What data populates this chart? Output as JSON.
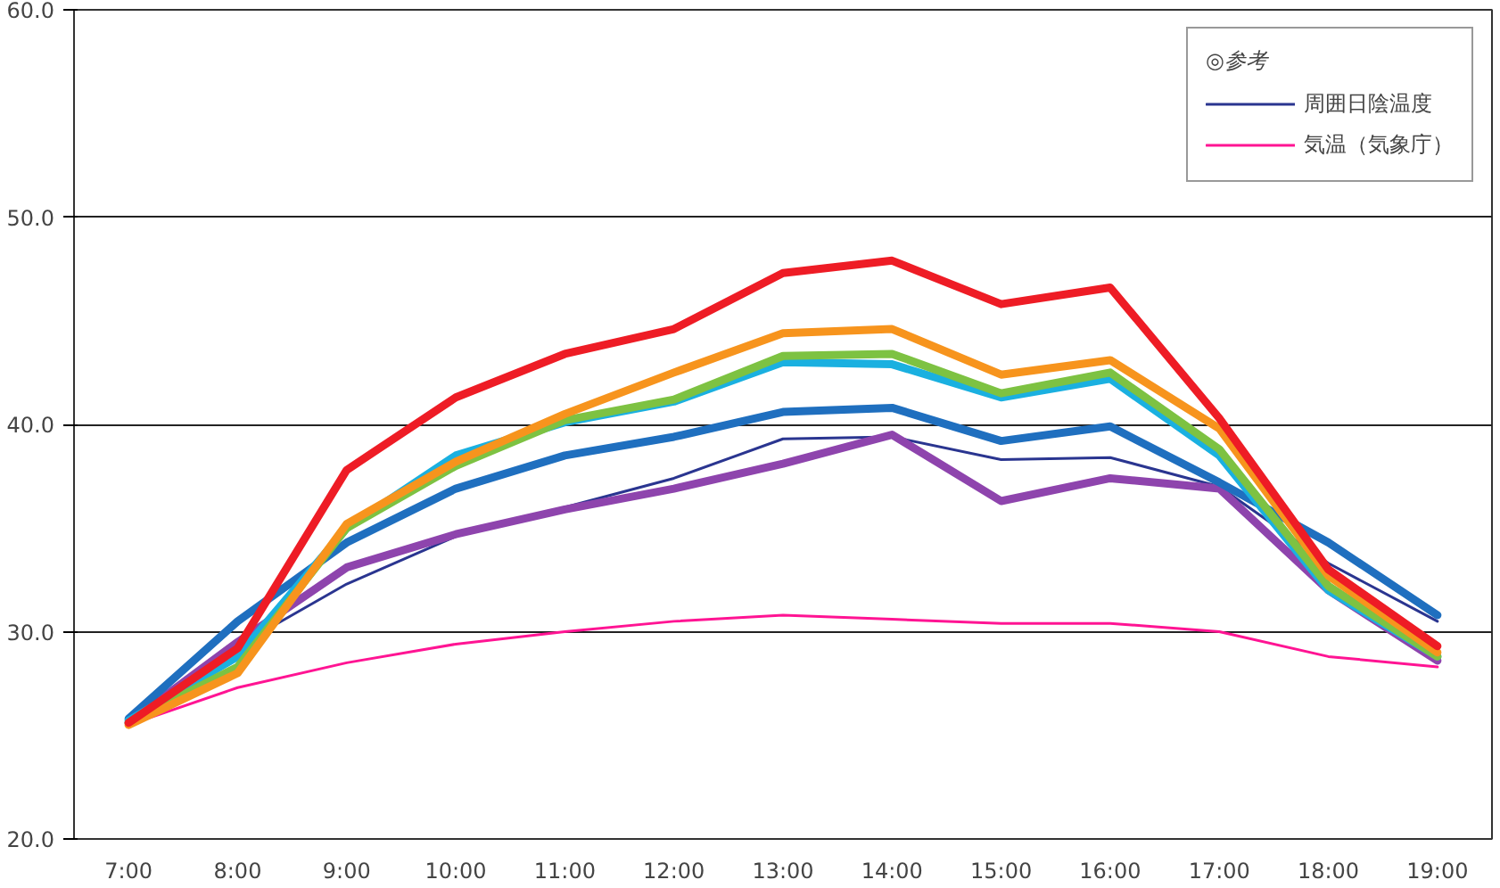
{
  "chart_data": {
    "type": "line",
    "categories": [
      "7:00",
      "8:00",
      "9:00",
      "10:00",
      "11:00",
      "12:00",
      "13:00",
      "14:00",
      "15:00",
      "16:00",
      "17:00",
      "18:00",
      "19:00"
    ],
    "ylim": [
      20,
      60
    ],
    "yticks": [
      {
        "value": 20,
        "label": "20.0"
      },
      {
        "value": 30,
        "label": "30.0"
      },
      {
        "value": 40,
        "label": "40.0"
      },
      {
        "value": 50,
        "label": "50.0"
      },
      {
        "value": 60,
        "label": "60.0"
      }
    ],
    "grid": "y",
    "legend": "top right",
    "legend_title": "◎参考",
    "line_style": "solid",
    "marker": "none",
    "series": [
      {
        "name": "気温（気象庁）",
        "color": "#ff1493",
        "values": [
          25.5,
          27.3,
          28.5,
          29.4,
          30.0,
          30.5,
          30.8,
          30.6,
          30.4,
          30.4,
          30.0,
          28.8,
          28.3
        ]
      },
      {
        "name": "周囲日陰温度",
        "color": "#2a3590",
        "values": [
          25.7,
          29.3,
          32.3,
          34.6,
          36.0,
          37.4,
          39.3,
          39.4,
          38.3,
          38.4,
          37.0,
          33.3,
          30.5
        ]
      },
      {
        "color": "#8e44ad",
        "values": [
          25.6,
          29.5,
          33.1,
          34.7,
          35.9,
          36.9,
          38.1,
          39.5,
          36.3,
          37.4,
          36.9,
          32.0,
          28.6
        ]
      },
      {
        "color": "#1f6fbf",
        "values": [
          25.8,
          30.5,
          34.3,
          36.9,
          38.5,
          39.4,
          40.6,
          40.8,
          39.2,
          39.9,
          37.2,
          34.3,
          30.8
        ]
      },
      {
        "color": "#1ab0e0",
        "values": [
          25.7,
          28.8,
          35.0,
          38.5,
          40.1,
          41.1,
          43.0,
          42.9,
          41.3,
          42.2,
          38.5,
          32.0,
          28.8
        ]
      },
      {
        "color": "#7dc242",
        "values": [
          25.6,
          28.3,
          35.0,
          38.0,
          40.2,
          41.2,
          43.3,
          43.4,
          41.5,
          42.5,
          38.8,
          32.2,
          28.8
        ]
      },
      {
        "color": "#f7941d",
        "values": [
          25.5,
          28.0,
          35.2,
          38.2,
          40.5,
          42.5,
          44.4,
          44.6,
          42.4,
          43.1,
          39.8,
          32.7,
          29.0
        ]
      },
      {
        "color": "#ee1c25",
        "values": [
          25.6,
          29.2,
          37.8,
          41.3,
          43.4,
          44.6,
          47.3,
          47.9,
          45.8,
          46.6,
          40.3,
          33.0,
          29.3
        ]
      }
    ]
  }
}
